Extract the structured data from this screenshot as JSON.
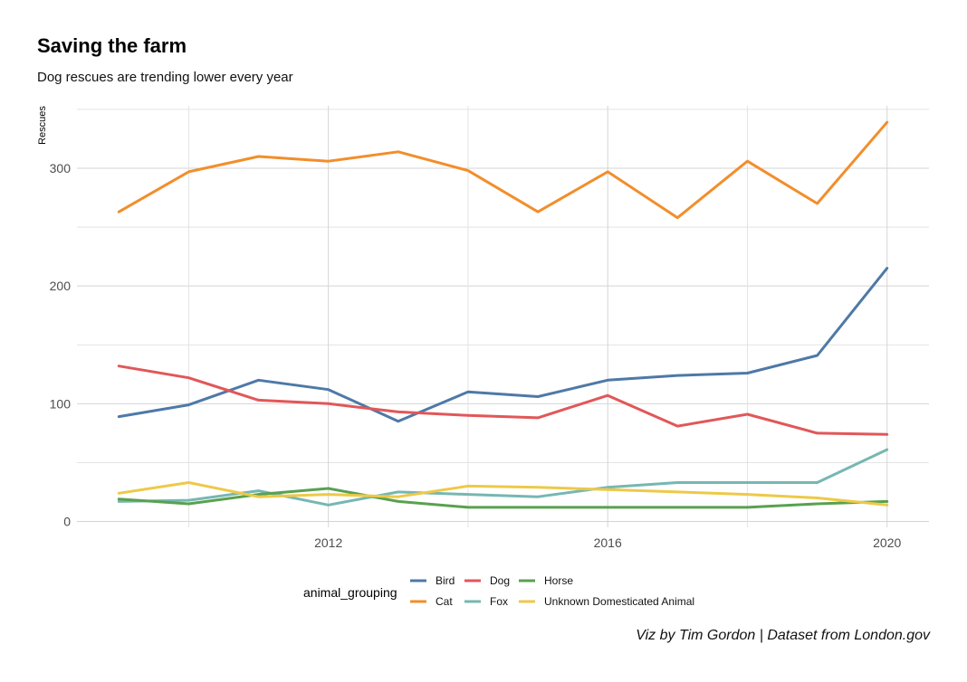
{
  "header": {
    "title": "Saving the farm",
    "subtitle": "Dog rescues are trending lower every year"
  },
  "caption": "Viz by Tim Gordon | Dataset from London.gov",
  "chart_data": {
    "type": "line",
    "title": "Saving the farm",
    "subtitle": "Dog rescues are trending lower every year",
    "xlabel": "",
    "ylabel": "Rescues",
    "x": [
      2009,
      2010,
      2011,
      2012,
      2013,
      2014,
      2015,
      2016,
      2017,
      2018,
      2019,
      2020
    ],
    "xlim": [
      2008.4,
      2020.6
    ],
    "ylim": [
      -5,
      353
    ],
    "x_ticks": [
      2012,
      2016,
      2020
    ],
    "y_ticks": [
      0,
      100,
      200,
      300
    ],
    "grid": true,
    "legend": {
      "title": "animal_grouping",
      "position": "bottom"
    },
    "series": [
      {
        "name": "Bird",
        "color": "#4E79A7",
        "values": [
          89,
          99,
          120,
          112,
          85,
          110,
          106,
          120,
          124,
          126,
          141,
          215
        ]
      },
      {
        "name": "Cat",
        "color": "#F28E2B",
        "values": [
          263,
          297,
          310,
          306,
          314,
          298,
          263,
          297,
          258,
          306,
          270,
          339
        ]
      },
      {
        "name": "Dog",
        "color": "#E15759",
        "values": [
          132,
          122,
          103,
          100,
          93,
          90,
          88,
          107,
          81,
          91,
          75,
          74
        ]
      },
      {
        "name": "Fox",
        "color": "#76B7B2",
        "values": [
          17,
          18,
          26,
          14,
          25,
          23,
          21,
          29,
          33,
          33,
          33,
          61
        ]
      },
      {
        "name": "Horse",
        "color": "#59A14F",
        "values": [
          19,
          15,
          23,
          28,
          17,
          12,
          12,
          12,
          12,
          12,
          15,
          17
        ]
      },
      {
        "name": "Unknown Domesticated Animal",
        "color": "#EDC948",
        "values": [
          24,
          33,
          21,
          23,
          21,
          30,
          29,
          27,
          25,
          23,
          20,
          14
        ]
      }
    ]
  }
}
